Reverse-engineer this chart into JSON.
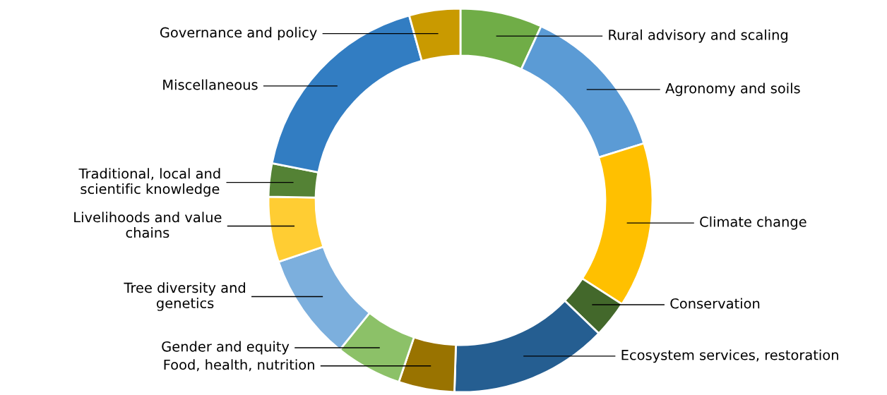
{
  "chart_data": {
    "type": "donut",
    "categories": [
      "Rural advisory and scaling",
      "Agronomy and soils",
      "Climate change",
      "Conservation",
      "Ecosystem services, restoration",
      "Food, health, nutrition",
      "Gender and equity",
      "Tree diversity and\ngenetics",
      "Livelihoods and value\nchains",
      "Traditional, local and\nscientific knowledge",
      "Miscellaneous",
      "Governance and policy"
    ],
    "values": [
      6.9,
      13.3,
      13.9,
      3.1,
      13.3,
      4.7,
      5.6,
      9.0,
      5.5,
      2.8,
      17.6,
      4.3
    ],
    "colors": [
      "#70ad47",
      "#5b9bd5",
      "#ffc000",
      "#43682b",
      "#255e91",
      "#997300",
      "#8cc168",
      "#7cafdd",
      "#ffcd33",
      "#548235",
      "#327dc2",
      "#c99a00"
    ],
    "legend": false
  }
}
